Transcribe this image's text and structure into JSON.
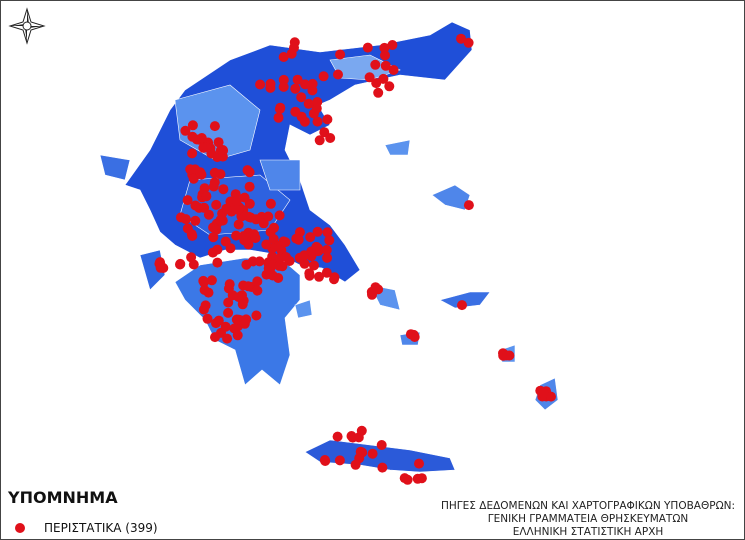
{
  "legend": {
    "title": "ΥΠΟΜΝΗΜΑ",
    "items": [
      {
        "label": "ΠΕΡΙΣΤΑΤΙΚΑ (399)"
      }
    ]
  },
  "sources": [
    "ΠΗΓΕΣ ΔΕΔΟΜΕΝΩΝ ΚΑΙ ΧΑΡΤΟΓΡΑΦΙΚΩΝ ΥΠΟΒΑΘΡΩΝ:",
    "ΓΕΝΙΚΗ ΓΡΑΜΜΑΤΕΙΑ ΘΡΗΣΚΕΥΜΑΤΩΝ",
    "ΕΛΛΗΝΙΚΗ ΣΤΑΤΙΣΤΙΚΗ ΑΡΧΗ"
  ]
}
